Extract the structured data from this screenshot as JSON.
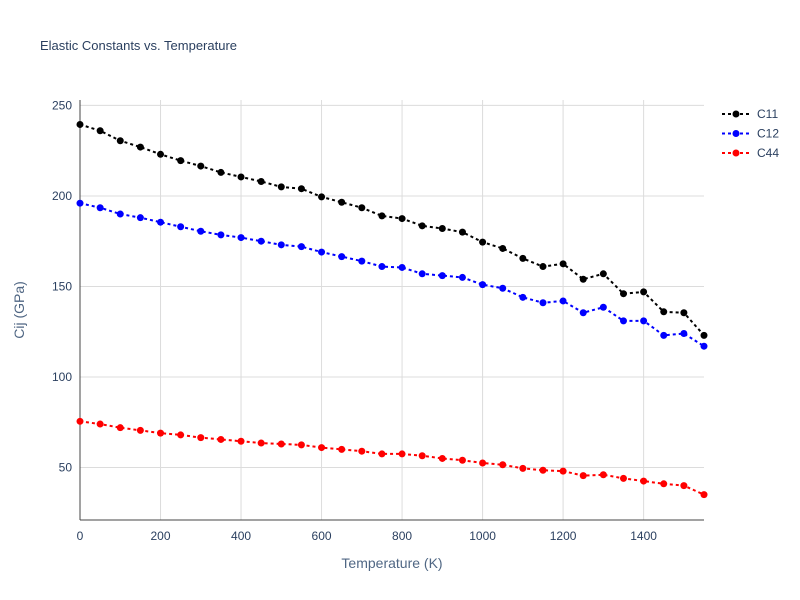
{
  "chart_data": {
    "type": "line",
    "title": "Elastic Constants vs. Temperature",
    "xlabel": "Temperature (K)",
    "ylabel": "Cij (GPa)",
    "xlim": [
      0,
      1550
    ],
    "ylim": [
      21,
      253
    ],
    "xticks": [
      0,
      200,
      400,
      600,
      800,
      1000,
      1200,
      1400
    ],
    "yticks": [
      50,
      100,
      150,
      200,
      250
    ],
    "grid": true,
    "legend_position": "top-right",
    "x": [
      0,
      50,
      100,
      150,
      200,
      250,
      300,
      350,
      400,
      450,
      500,
      550,
      600,
      650,
      700,
      750,
      800,
      850,
      900,
      950,
      1000,
      1050,
      1100,
      1150,
      1200,
      1250,
      1300,
      1350,
      1400,
      1450,
      1500,
      1550
    ],
    "series": [
      {
        "name": "C11",
        "color": "#000000",
        "values": [
          239.5,
          236,
          230.5,
          227,
          223,
          219.5,
          216.5,
          213,
          210.5,
          208,
          205,
          204,
          199.5,
          196.5,
          193.5,
          189,
          187.5,
          183.5,
          182,
          180,
          174.5,
          171,
          165.5,
          161,
          162.5,
          154,
          157,
          146,
          147,
          136,
          135.5,
          123
        ]
      },
      {
        "name": "C12",
        "color": "#0000ff",
        "values": [
          196,
          193.5,
          190,
          188,
          185.5,
          183,
          180.5,
          178.5,
          177,
          175,
          173,
          172,
          169,
          166.5,
          164,
          161,
          160.5,
          157,
          156,
          155,
          151,
          149,
          144,
          141,
          142,
          135.5,
          138.5,
          131,
          131,
          123,
          124,
          117
        ]
      },
      {
        "name": "C44",
        "color": "#ff0000",
        "values": [
          75.5,
          74,
          72,
          70.5,
          69,
          68,
          66.5,
          65.5,
          64.5,
          63.5,
          63,
          62.5,
          61,
          60,
          59,
          57.5,
          57.5,
          56.5,
          55,
          54,
          52.5,
          51.5,
          49.5,
          48.5,
          48,
          45.5,
          46,
          44,
          42.5,
          41,
          40,
          35
        ]
      }
    ]
  }
}
